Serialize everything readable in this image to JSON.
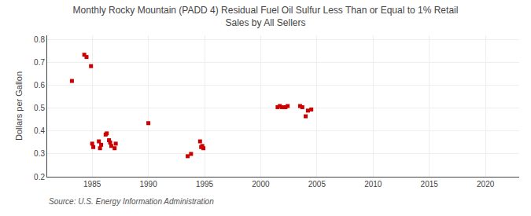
{
  "chart_data": {
    "type": "scatter",
    "title": "Monthly Rocky Mountain (PADD 4) Residual Fuel Oil Sulfur Less Than or Equal to 1% Retail\nSales by All Sellers",
    "ylabel": "Dollars per Gallon",
    "annotations": [
      "Source: U.S. Energy Information Administration"
    ],
    "color": "#cc0000",
    "marker": "square",
    "grid": true,
    "xlim": [
      1981,
      2023
    ],
    "ylim": [
      0.2,
      0.82
    ],
    "xticks": [
      1985,
      1990,
      1995,
      2000,
      2005,
      2010,
      2015,
      2020
    ],
    "yticks": [
      0.2,
      0.3,
      0.4,
      0.5,
      0.6,
      0.7,
      0.8
    ],
    "x": [
      1983.2,
      1984.3,
      1984.5,
      1984.9,
      1985.0,
      1985.1,
      1985.6,
      1985.7,
      1985.8,
      1986.2,
      1986.3,
      1986.5,
      1986.6,
      1986.7,
      1987.0,
      1987.1,
      1990.0,
      1993.5,
      1993.8,
      1994.6,
      1994.7,
      1994.8,
      1994.9,
      2001.5,
      2001.7,
      2001.9,
      2002.2,
      2002.4,
      2003.5,
      2003.7,
      2004.0,
      2004.2,
      2004.5
    ],
    "values": [
      0.62,
      0.735,
      0.725,
      0.685,
      0.345,
      0.33,
      0.355,
      0.325,
      0.34,
      0.385,
      0.39,
      0.36,
      0.35,
      0.335,
      0.325,
      0.345,
      0.435,
      0.29,
      0.3,
      0.355,
      0.33,
      0.335,
      0.325,
      0.505,
      0.51,
      0.505,
      0.505,
      0.51,
      0.51,
      0.505,
      0.465,
      0.49,
      0.495
    ]
  }
}
